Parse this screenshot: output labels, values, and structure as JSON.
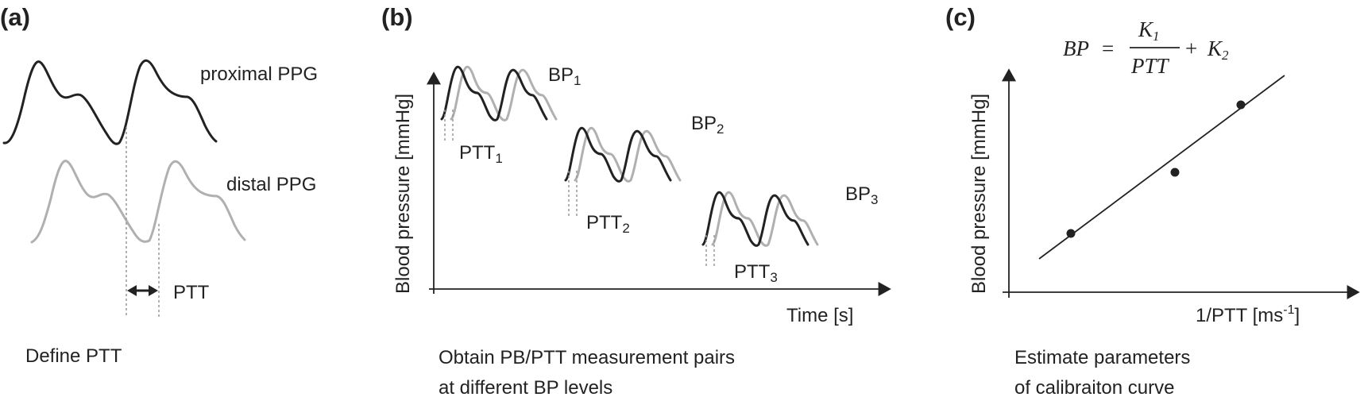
{
  "panel_a": {
    "label": "(a)",
    "proximal_label": "proximal PPG",
    "distal_label": "distal PPG",
    "ptt_label": "PTT",
    "caption": "Define PTT"
  },
  "panel_b": {
    "label": "(b)",
    "y_axis_label": "Blood pressure [mmHg]",
    "x_axis_label": "Time [s]",
    "levels": [
      {
        "bp_base": "BP",
        "bp_sub": "1",
        "ptt_base": "PTT",
        "ptt_sub": "1"
      },
      {
        "bp_base": "BP",
        "bp_sub": "2",
        "ptt_base": "PTT",
        "ptt_sub": "2"
      },
      {
        "bp_base": "BP",
        "bp_sub": "3",
        "ptt_base": "PTT",
        "ptt_sub": "3"
      }
    ],
    "caption_line1": "Obtain PB/PTT measurement pairs",
    "caption_line2": "at different BP levels"
  },
  "panel_c": {
    "label": "(c)",
    "y_axis_label": "Blood pressure [mmHg]",
    "x_axis_label_base": "1/PTT [ms",
    "x_axis_label_sup": "-1",
    "x_axis_label_close": "]",
    "formula": {
      "lhs": "BP",
      "equals": "=",
      "numerator_base": "K",
      "numerator_sub": "1",
      "denominator": "PTT",
      "plus": "+",
      "term_base": "K",
      "term_sub": "2"
    },
    "caption_line1": "Estimate parameters",
    "caption_line2": "of calibraiton curve"
  },
  "colors": {
    "proximal": "#222222",
    "distal": "#b0b0b0"
  }
}
